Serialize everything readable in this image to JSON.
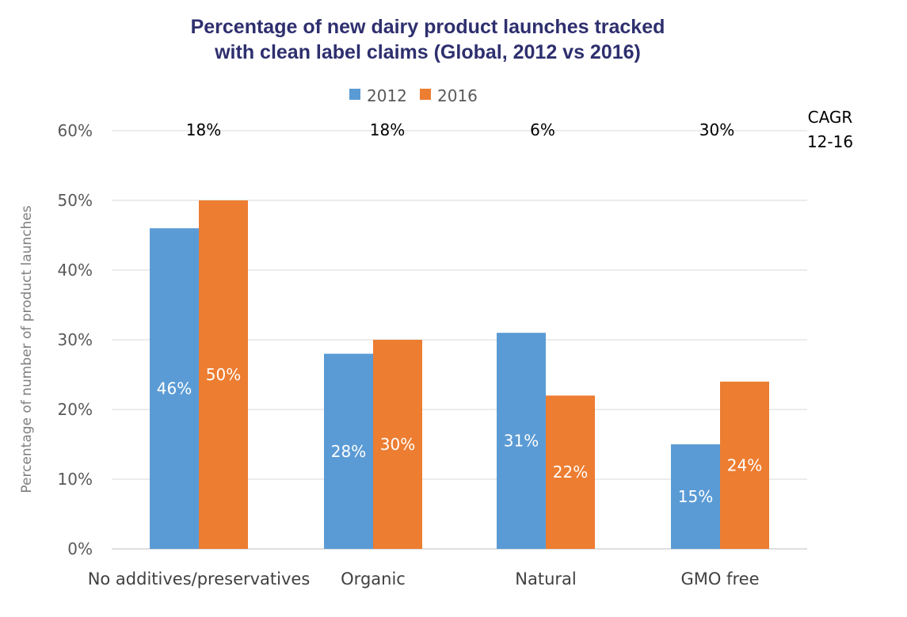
{
  "chart_data": {
    "type": "bar",
    "title_lines": [
      "Percentage of new dairy product launches tracked",
      "with clean label claims (Global, 2012 vs 2016)"
    ],
    "xlabel": "",
    "ylabel": "Percentage of number of product launches",
    "categories": [
      "No additives/preservatives",
      "Organic",
      "Natural",
      "GMO free"
    ],
    "series": [
      {
        "name": "2012",
        "color": "#5b9bd5",
        "values": [
          46,
          28,
          31,
          15
        ],
        "labels": [
          "46%",
          "28%",
          "31%",
          "15%"
        ]
      },
      {
        "name": "2016",
        "color": "#ed7d31",
        "values": [
          50,
          30,
          22,
          24
        ],
        "labels": [
          "50%",
          "30%",
          "22%",
          "24%"
        ]
      }
    ],
    "ylim": [
      0,
      60
    ],
    "yticks": [
      0,
      10,
      20,
      30,
      40,
      50,
      60
    ],
    "ytick_labels": [
      "0%",
      "10%",
      "20%",
      "30%",
      "40%",
      "50%",
      "60%"
    ],
    "grid": true,
    "legend_position": "top-center",
    "cagr_header": [
      "CAGR",
      "12-16"
    ],
    "cagr_values": [
      "18%",
      "18%",
      "6%",
      "30%"
    ]
  }
}
